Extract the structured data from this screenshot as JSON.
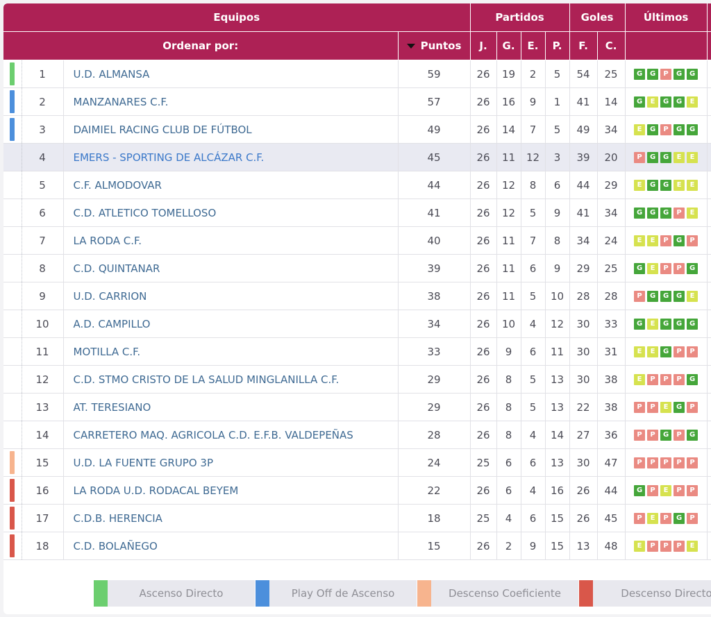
{
  "colors": {
    "header_bg": "#ad2155",
    "ascenso_directo": "#6cce6f",
    "play_off": "#4c8fdc",
    "descenso_coef": "#f7b48e",
    "descenso_directo": "#d9574a",
    "form_G": "#45a63a",
    "form_E": "#d6e24f",
    "form_P": "#ea8a82"
  },
  "header": {
    "equipos": "Equipos",
    "partidos": "Partidos",
    "goles": "Goles",
    "ultimos": "Últimos",
    "ordenar": "Ordenar por:",
    "puntos": "Puntos",
    "j": "J.",
    "g": "G.",
    "e": "E.",
    "p": "P.",
    "f": "F.",
    "c": "C."
  },
  "rows": [
    {
      "pos": "1",
      "team": "U.D. ALMANSA",
      "pts": "59",
      "j": "26",
      "g": "19",
      "e": "2",
      "p": "5",
      "f": "54",
      "c": "25",
      "zone": "ascenso_directo",
      "form": [
        "G",
        "G",
        "P",
        "G",
        "G"
      ]
    },
    {
      "pos": "2",
      "team": "MANZANARES C.F.",
      "pts": "57",
      "j": "26",
      "g": "16",
      "e": "9",
      "p": "1",
      "f": "41",
      "c": "14",
      "zone": "play_off",
      "form": [
        "G",
        "E",
        "G",
        "G",
        "E"
      ]
    },
    {
      "pos": "3",
      "team": "DAIMIEL RACING CLUB DE FÚTBOL",
      "pts": "49",
      "j": "26",
      "g": "14",
      "e": "7",
      "p": "5",
      "f": "49",
      "c": "34",
      "zone": "play_off",
      "form": [
        "E",
        "G",
        "P",
        "G",
        "G"
      ]
    },
    {
      "pos": "4",
      "team": "EMERS - SPORTING DE ALCÁZAR C.F.",
      "pts": "45",
      "j": "26",
      "g": "11",
      "e": "12",
      "p": "3",
      "f": "39",
      "c": "20",
      "zone": "",
      "form": [
        "P",
        "G",
        "G",
        "E",
        "E"
      ],
      "highlight": true
    },
    {
      "pos": "5",
      "team": "C.F. ALMODOVAR",
      "pts": "44",
      "j": "26",
      "g": "12",
      "e": "8",
      "p": "6",
      "f": "44",
      "c": "29",
      "zone": "",
      "form": [
        "E",
        "G",
        "G",
        "E",
        "E"
      ]
    },
    {
      "pos": "6",
      "team": "C.D. ATLETICO TOMELLOSO",
      "pts": "41",
      "j": "26",
      "g": "12",
      "e": "5",
      "p": "9",
      "f": "41",
      "c": "34",
      "zone": "",
      "form": [
        "G",
        "G",
        "G",
        "P",
        "E"
      ]
    },
    {
      "pos": "7",
      "team": "LA RODA C.F.",
      "pts": "40",
      "j": "26",
      "g": "11",
      "e": "7",
      "p": "8",
      "f": "34",
      "c": "24",
      "zone": "",
      "form": [
        "E",
        "E",
        "P",
        "G",
        "P"
      ]
    },
    {
      "pos": "8",
      "team": "C.D. QUINTANAR",
      "pts": "39",
      "j": "26",
      "g": "11",
      "e": "6",
      "p": "9",
      "f": "29",
      "c": "25",
      "zone": "",
      "form": [
        "G",
        "E",
        "P",
        "P",
        "G"
      ]
    },
    {
      "pos": "9",
      "team": "U.D. CARRION",
      "pts": "38",
      "j": "26",
      "g": "11",
      "e": "5",
      "p": "10",
      "f": "28",
      "c": "28",
      "zone": "",
      "form": [
        "P",
        "G",
        "G",
        "G",
        "E"
      ]
    },
    {
      "pos": "10",
      "team": "A.D. CAMPILLO",
      "pts": "34",
      "j": "26",
      "g": "10",
      "e": "4",
      "p": "12",
      "f": "30",
      "c": "33",
      "zone": "",
      "form": [
        "G",
        "E",
        "G",
        "G",
        "G"
      ]
    },
    {
      "pos": "11",
      "team": "MOTILLA C.F.",
      "pts": "33",
      "j": "26",
      "g": "9",
      "e": "6",
      "p": "11",
      "f": "30",
      "c": "31",
      "zone": "",
      "form": [
        "E",
        "E",
        "G",
        "P",
        "P"
      ]
    },
    {
      "pos": "12",
      "team": "C.D. STMO CRISTO DE LA SALUD MINGLANILLA C.F.",
      "pts": "29",
      "j": "26",
      "g": "8",
      "e": "5",
      "p": "13",
      "f": "30",
      "c": "38",
      "zone": "",
      "form": [
        "E",
        "P",
        "P",
        "P",
        "G"
      ]
    },
    {
      "pos": "13",
      "team": "AT. TERESIANO",
      "pts": "29",
      "j": "26",
      "g": "8",
      "e": "5",
      "p": "13",
      "f": "22",
      "c": "38",
      "zone": "",
      "form": [
        "P",
        "P",
        "E",
        "G",
        "P"
      ]
    },
    {
      "pos": "14",
      "team": "CARRETERO MAQ. AGRICOLA C.D. E.F.B. VALDEPEÑAS",
      "pts": "28",
      "j": "26",
      "g": "8",
      "e": "4",
      "p": "14",
      "f": "27",
      "c": "36",
      "zone": "",
      "form": [
        "P",
        "P",
        "G",
        "P",
        "G"
      ]
    },
    {
      "pos": "15",
      "team": "U.D. LA FUENTE GRUPO 3P",
      "pts": "24",
      "j": "25",
      "g": "6",
      "e": "6",
      "p": "13",
      "f": "30",
      "c": "47",
      "zone": "descenso_coef",
      "form": [
        "P",
        "P",
        "P",
        "P",
        "P"
      ]
    },
    {
      "pos": "16",
      "team": "LA RODA U.D. RODACAL BEYEM",
      "pts": "22",
      "j": "26",
      "g": "6",
      "e": "4",
      "p": "16",
      "f": "26",
      "c": "44",
      "zone": "descenso_directo",
      "form": [
        "G",
        "P",
        "E",
        "P",
        "P"
      ]
    },
    {
      "pos": "17",
      "team": "C.D.B. HERENCIA",
      "pts": "18",
      "j": "25",
      "g": "4",
      "e": "6",
      "p": "15",
      "f": "26",
      "c": "45",
      "zone": "descenso_directo",
      "form": [
        "P",
        "E",
        "P",
        "G",
        "P"
      ]
    },
    {
      "pos": "18",
      "team": "C.D. BOLAÑEGO",
      "pts": "15",
      "j": "26",
      "g": "2",
      "e": "9",
      "p": "15",
      "f": "13",
      "c": "48",
      "zone": "descenso_directo",
      "form": [
        "E",
        "P",
        "P",
        "P",
        "E"
      ]
    }
  ],
  "legend": [
    {
      "label": "Ascenso Directo",
      "zone": "ascenso_directo"
    },
    {
      "label": "Play Off de Ascenso",
      "zone": "play_off"
    },
    {
      "label": "Descenso Coeficiente",
      "zone": "descenso_coef"
    },
    {
      "label": "Descenso Directo",
      "zone": "descenso_directo"
    }
  ]
}
